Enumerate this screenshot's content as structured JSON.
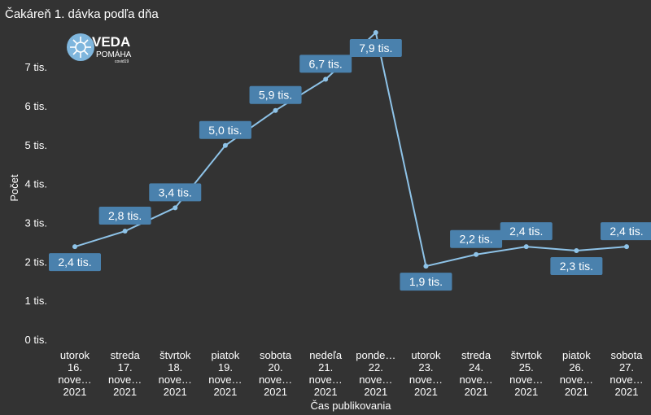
{
  "chart_data": {
    "type": "line",
    "title": "Čakáreň 1. dávka podľa dňa",
    "xlabel": "Čas publikovania",
    "ylabel": "Počet",
    "ylim": [
      0,
      7900
    ],
    "yticks": [
      {
        "value": 0,
        "label": "0 tis."
      },
      {
        "value": 1000,
        "label": "1 tis."
      },
      {
        "value": 2000,
        "label": "2 tis."
      },
      {
        "value": 3000,
        "label": "3 tis."
      },
      {
        "value": 4000,
        "label": "4 tis."
      },
      {
        "value": 5000,
        "label": "5 tis."
      },
      {
        "value": 6000,
        "label": "6 tis."
      },
      {
        "value": 7000,
        "label": "7 tis."
      }
    ],
    "categories": [
      [
        "utorok",
        "16.",
        "nove…",
        "2021"
      ],
      [
        "streda",
        "17.",
        "nove…",
        "2021"
      ],
      [
        "štvrtok",
        "18.",
        "nove…",
        "2021"
      ],
      [
        "piatok",
        "19.",
        "nove…",
        "2021"
      ],
      [
        "sobota",
        "20.",
        "nove…",
        "2021"
      ],
      [
        "nedeľa",
        "21.",
        "nove…",
        "2021"
      ],
      [
        "ponde…",
        "22.",
        "nove…",
        "2021"
      ],
      [
        "utorok",
        "23.",
        "nove…",
        "2021"
      ],
      [
        "streda",
        "24.",
        "nove…",
        "2021"
      ],
      [
        "štvrtok",
        "25.",
        "nove…",
        "2021"
      ],
      [
        "piatok",
        "26.",
        "nove…",
        "2021"
      ],
      [
        "sobota",
        "27.",
        "nove…",
        "2021"
      ]
    ],
    "series": [
      {
        "name": "Počet",
        "values": [
          2400,
          2800,
          3400,
          5000,
          5900,
          6700,
          7900,
          1900,
          2200,
          2400,
          2300,
          2400
        ],
        "labels": [
          "2,4 tis.",
          "2,8 tis.",
          "3,4 tis.",
          "5,0 tis.",
          "5,9 tis.",
          "6,7 tis.",
          "7,9 tis.",
          "1,9 tis.",
          "2,2 tis.",
          "2,4 tis.",
          "2,3 tis.",
          "2,4 tis."
        ],
        "label_positions": [
          "below",
          "above",
          "above",
          "above",
          "above",
          "above",
          "below",
          "below",
          "above",
          "above",
          "below",
          "above"
        ]
      }
    ]
  },
  "logo": {
    "main": "VEDA",
    "sub": "POMÁHA",
    "small": "covid19"
  },
  "colors": {
    "background": "#333333",
    "line": "#8ec3e8",
    "label_bg": "#4a81ad",
    "text": "#ffffff"
  }
}
